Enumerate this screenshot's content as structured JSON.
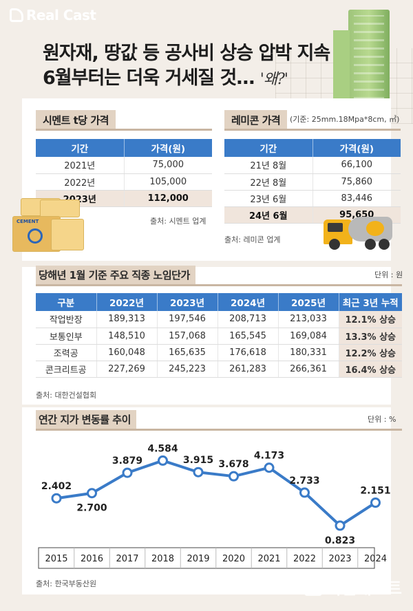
{
  "brand": {
    "logo_text": "Real Cast",
    "watermark": "리얼캐스트"
  },
  "headline": {
    "line1": "원자재, 땅값 등 공사비 상승 압박 지속",
    "line2": "6월부터는 더욱 거세질 것…",
    "hand": "'왜?'"
  },
  "cement": {
    "title": "시멘트 t당 가격",
    "headers": [
      "기간",
      "가격(원)"
    ],
    "rows": [
      {
        "period": "2021년",
        "price": "75,000"
      },
      {
        "period": "2022년",
        "price": "105,000"
      },
      {
        "period": "2023년",
        "price": "112,000"
      }
    ],
    "bag_label": "CEMENT",
    "source": "출처: 시멘트 업계"
  },
  "remicon": {
    "title": "레미콘 가격",
    "note": "(기준: 25mm.18Mpa*8cm, ㎥)",
    "headers": [
      "기간",
      "가격(원)"
    ],
    "rows": [
      {
        "period": "21년 8월",
        "price": "66,100"
      },
      {
        "period": "22년 8월",
        "price": "75,860"
      },
      {
        "period": "23년 6월",
        "price": "83,446"
      },
      {
        "period": "24년 6월",
        "price": "95,650"
      }
    ],
    "source": "출처: 레미콘 업계"
  },
  "wage": {
    "title": "당해년 1월 기준 주요 직종 노임단가",
    "unit": "단위 : 원",
    "headers": [
      "구분",
      "2022년",
      "2023년",
      "2024년",
      "2025년",
      "최근 3년 누적"
    ],
    "rows": [
      {
        "job": "작업반장",
        "v2022": "189,313",
        "v2023": "197,546",
        "v2024": "208,713",
        "v2025": "213,033",
        "acc": "12.1% 상승"
      },
      {
        "job": "보통인부",
        "v2022": "148,510",
        "v2023": "157,068",
        "v2024": "165,545",
        "v2025": "169,084",
        "acc": "13.3% 상승"
      },
      {
        "job": "조력공",
        "v2022": "160,048",
        "v2023": "165,635",
        "v2024": "176,618",
        "v2025": "180,331",
        "acc": "12.2% 상승"
      },
      {
        "job": "콘크리트공",
        "v2022": "227,269",
        "v2023": "245,223",
        "v2024": "261,283",
        "v2025": "266,361",
        "acc": "16.4% 상승"
      }
    ],
    "source": "출처: 대한건설협회"
  },
  "land": {
    "title": "연간 지가 변동률 추이",
    "unit": "단위 : %",
    "source": "출처: 한국부동산원"
  },
  "chart_data": {
    "type": "line",
    "title": "연간 지가 변동률 추이",
    "x": [
      "2015",
      "2016",
      "2017",
      "2018",
      "2019",
      "2020",
      "2021",
      "2022",
      "2023",
      "2024"
    ],
    "values": [
      2.402,
      2.7,
      3.879,
      4.584,
      3.915,
      3.678,
      4.173,
      2.733,
      0.823,
      2.151
    ],
    "labels": [
      "2.402",
      "2.700",
      "3.879",
      "4.584",
      "3.915",
      "3.678",
      "4.173",
      "2.733",
      "0.823",
      "2.151"
    ],
    "ylim": [
      0.5,
      4.8
    ],
    "ylabel": "단위 : %",
    "line_color": "#3a7bc8"
  }
}
